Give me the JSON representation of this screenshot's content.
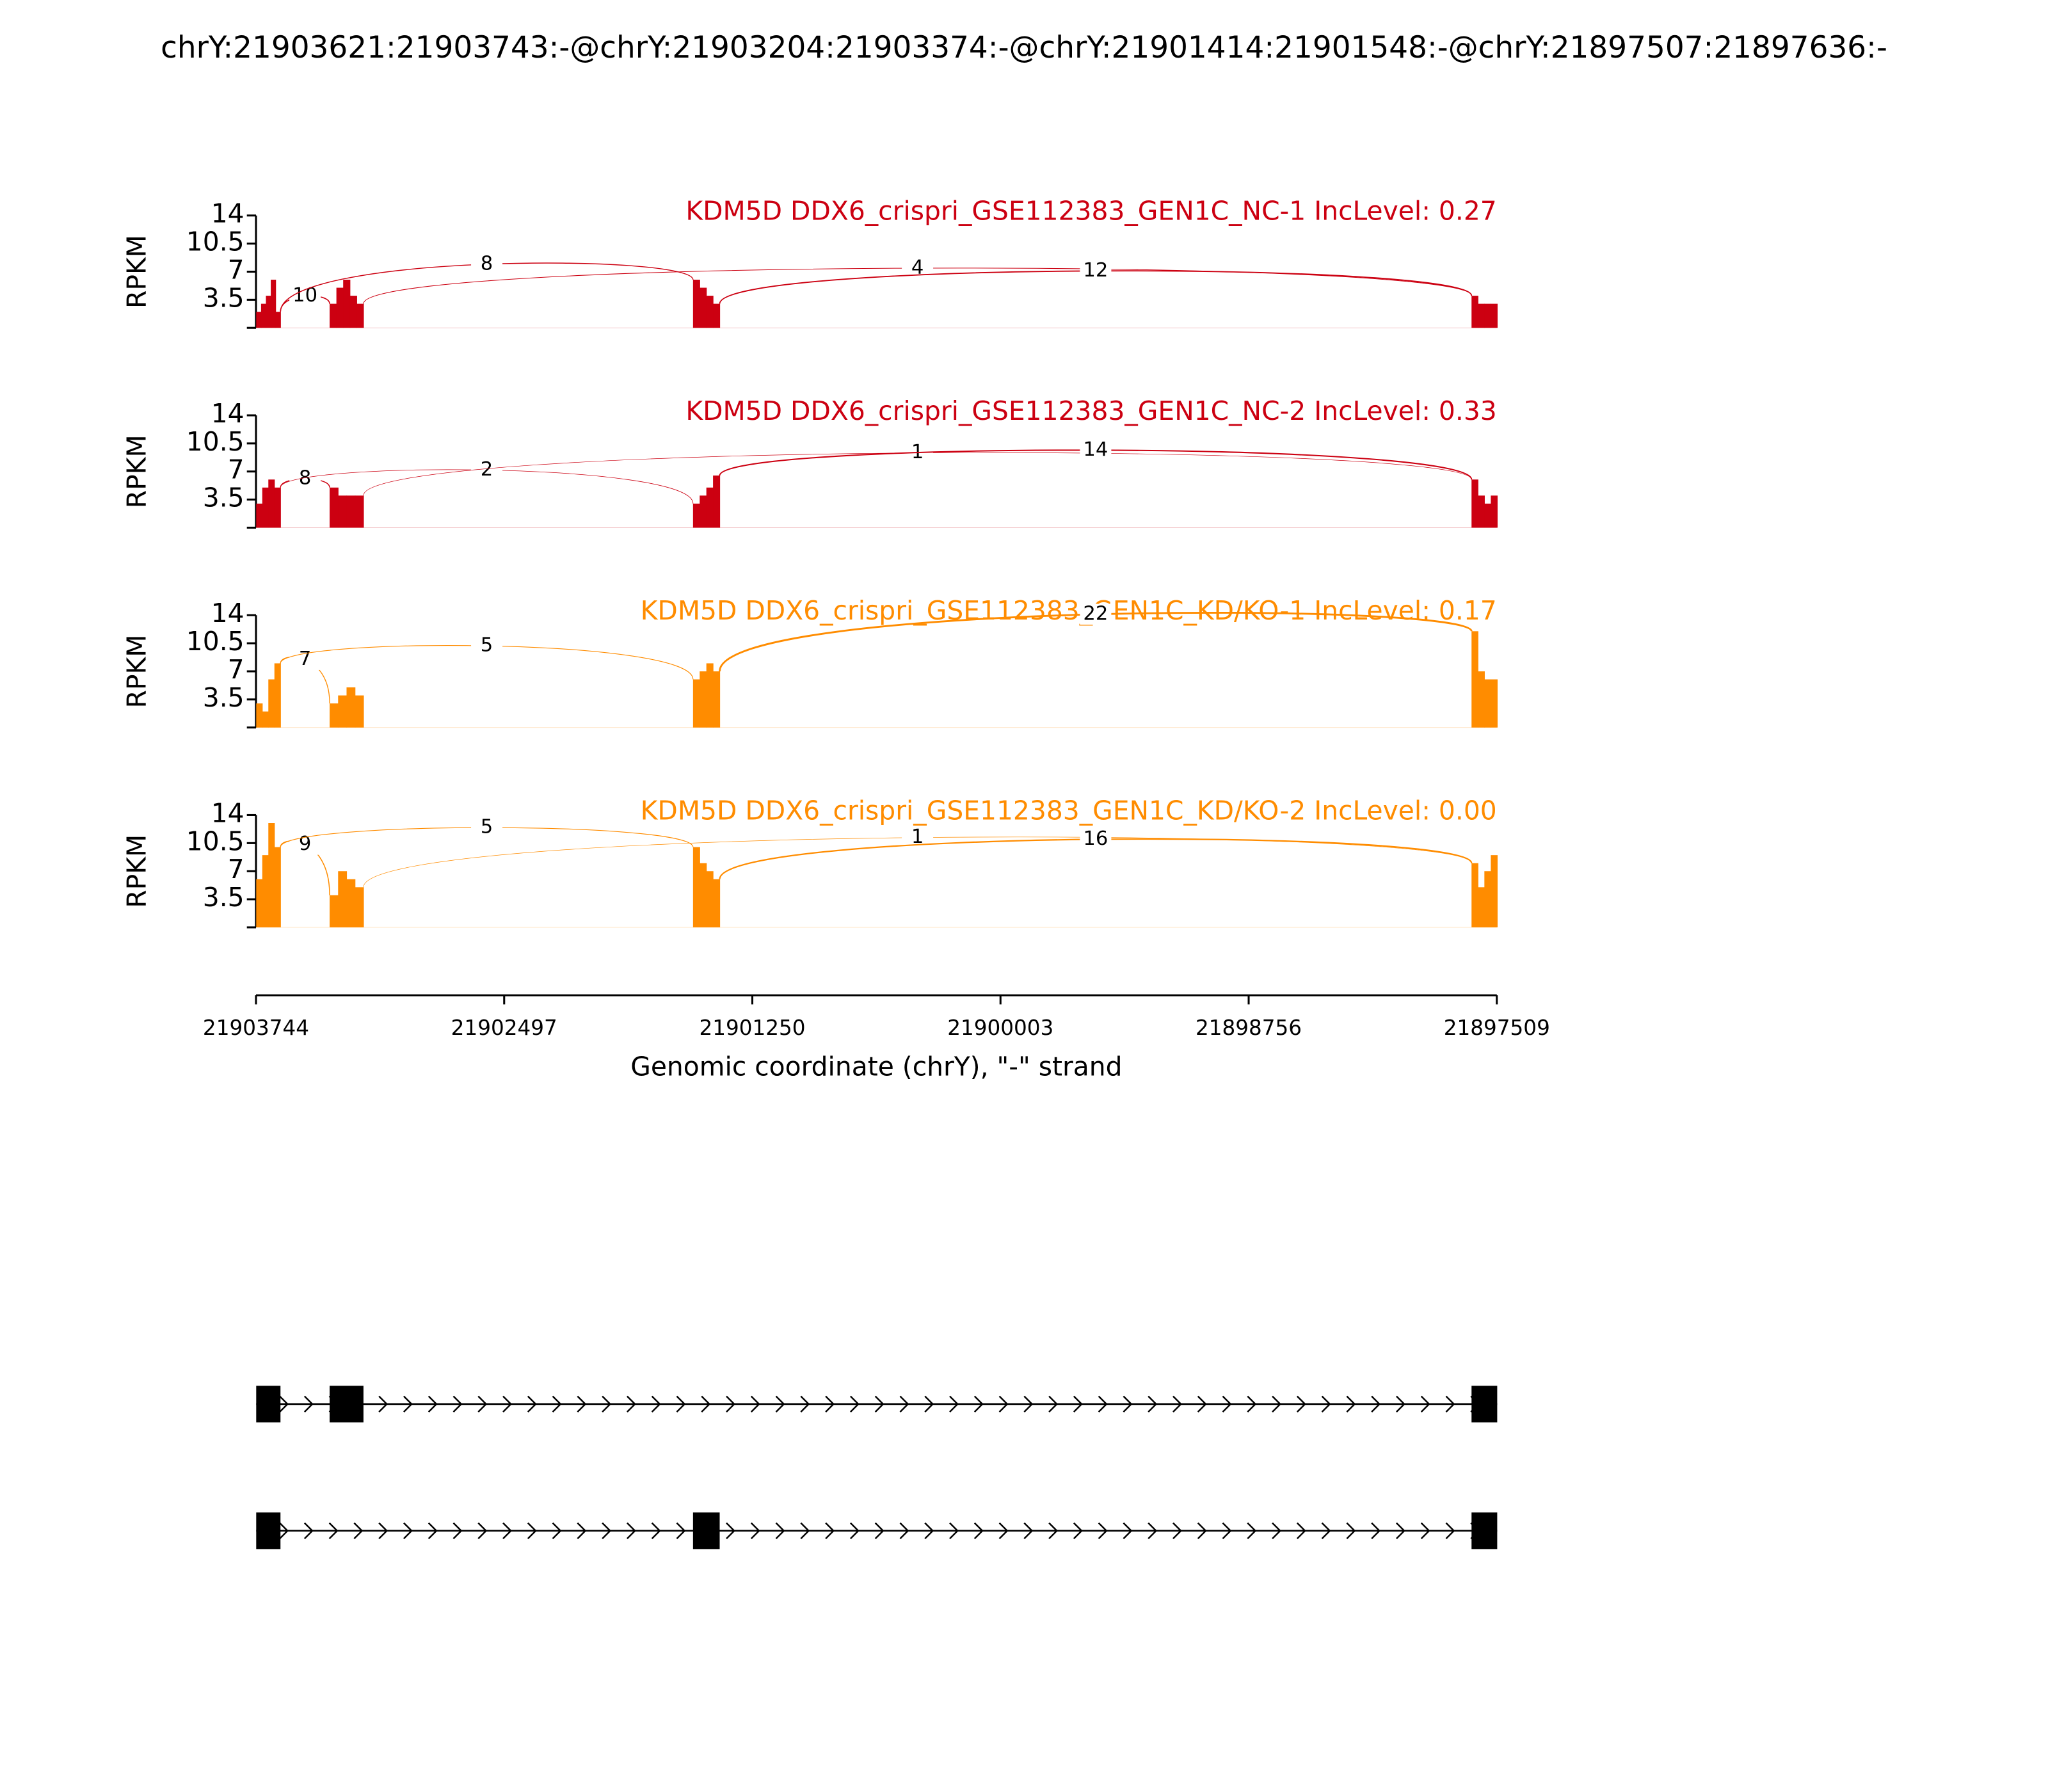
{
  "chart_data": {
    "type": "sashimi",
    "title": "chrY:21903621:21903743:-@chrY:21903204:21903374:-@chrY:21901414:21901548:-@chrY:21897507:21897636:-",
    "xlim": [
      21903744,
      21897509
    ],
    "xticks": [
      21903744,
      21902497,
      21901250,
      21900003,
      21898756,
      21897509
    ],
    "xlabel": "Genomic coordinate (chrY), \"-\" strand",
    "exons": [
      [
        21903743,
        21903621
      ],
      [
        21903374,
        21903204
      ],
      [
        21901548,
        21901414
      ],
      [
        21897636,
        21897507
      ]
    ],
    "panels": [
      {
        "label": "KDM5D DDX6_crispri_GSE112383_GEN1C_NC-1 IncLevel: 0.27",
        "color": "#cc0011",
        "ylabel": "RPKM",
        "ylim": [
          0,
          14
        ],
        "yticks": [
          3.5,
          7,
          10.5,
          14
        ],
        "coverage": [
          [
            2,
            3,
            4,
            6,
            2
          ],
          [
            3,
            5,
            6,
            4,
            3
          ],
          [
            6,
            5,
            4,
            3
          ],
          [
            4,
            3,
            3,
            3
          ]
        ],
        "junctions": [
          {
            "from": 21903621,
            "to": 21903374,
            "count": 10
          },
          {
            "from": 21903621,
            "to": 21901548,
            "count": 8
          },
          {
            "from": 21903204,
            "to": 21897636,
            "count": 4
          },
          {
            "from": 21901414,
            "to": 21897636,
            "count": 12
          }
        ]
      },
      {
        "label": "KDM5D DDX6_crispri_GSE112383_GEN1C_NC-2 IncLevel: 0.33",
        "color": "#cc0011",
        "ylabel": "RPKM",
        "ylim": [
          0,
          14
        ],
        "yticks": [
          3.5,
          7,
          10.5,
          14
        ],
        "coverage": [
          [
            3,
            5,
            6,
            5
          ],
          [
            5,
            4,
            4,
            4
          ],
          [
            3,
            4,
            5,
            6.5
          ],
          [
            6,
            4,
            3,
            4
          ]
        ],
        "junctions": [
          {
            "from": 21903621,
            "to": 21903374,
            "count": 8
          },
          {
            "from": 21903621,
            "to": 21901548,
            "count": 2
          },
          {
            "from": 21903204,
            "to": 21897636,
            "count": 1
          },
          {
            "from": 21901414,
            "to": 21897636,
            "count": 14
          }
        ]
      },
      {
        "label": "KDM5D DDX6_crispri_GSE112383_GEN1C_KD/KO-1 IncLevel: 0.17",
        "color": "#ff8c00",
        "ylabel": "RPKM",
        "ylim": [
          0,
          14
        ],
        "yticks": [
          3.5,
          7,
          10.5,
          14
        ],
        "coverage": [
          [
            3,
            2,
            6,
            8
          ],
          [
            3,
            4,
            5,
            4
          ],
          [
            6,
            7,
            8,
            7
          ],
          [
            12,
            7,
            6,
            6
          ]
        ],
        "junctions": [
          {
            "from": 21903621,
            "to": 21903374,
            "count": 7
          },
          {
            "from": 21903621,
            "to": 21901548,
            "count": 5
          },
          {
            "from": 21901414,
            "to": 21897636,
            "count": 22
          }
        ]
      },
      {
        "label": "KDM5D DDX6_crispri_GSE112383_GEN1C_KD/KO-2 IncLevel: 0.00",
        "color": "#ff8c00",
        "ylabel": "RPKM",
        "ylim": [
          0,
          14
        ],
        "yticks": [
          3.5,
          7,
          10.5,
          14
        ],
        "coverage": [
          [
            6,
            9,
            13,
            10
          ],
          [
            4,
            7,
            6,
            5
          ],
          [
            10,
            8,
            7,
            6
          ],
          [
            8,
            5,
            7,
            9
          ]
        ],
        "junctions": [
          {
            "from": 21903621,
            "to": 21903374,
            "count": 9
          },
          {
            "from": 21903621,
            "to": 21901548,
            "count": 5
          },
          {
            "from": 21903204,
            "to": 21897636,
            "count": 1
          },
          {
            "from": 21901414,
            "to": 21897636,
            "count": 16
          }
        ]
      }
    ],
    "transcripts": [
      [
        [
          21903743,
          21903621
        ],
        [
          21903374,
          21903204
        ],
        [
          21897636,
          21897507
        ]
      ],
      [
        [
          21903743,
          21903621
        ],
        [
          21901548,
          21901414
        ],
        [
          21897636,
          21897507
        ]
      ]
    ]
  }
}
